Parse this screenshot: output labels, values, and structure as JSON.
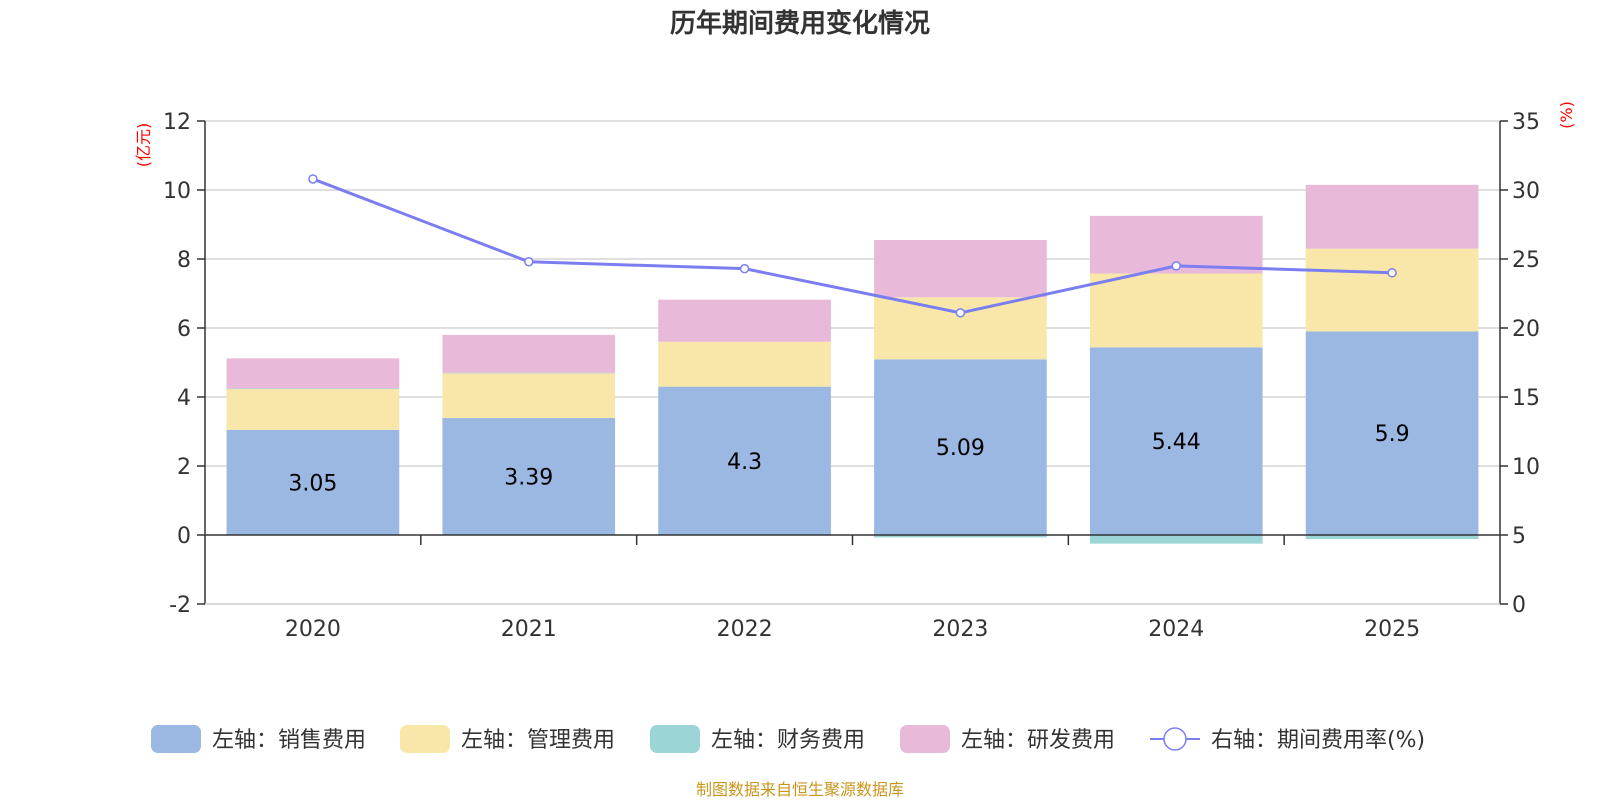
{
  "chart_data": {
    "type": "bar",
    "title": "历年期间费用变化情况",
    "categories": [
      "2020",
      "2021",
      "2022",
      "2023",
      "2024",
      "2025"
    ],
    "y_left": {
      "unit": "(亿元)",
      "range": [
        -2,
        12
      ],
      "ticks": [
        -2,
        0,
        2,
        4,
        6,
        8,
        10,
        12
      ]
    },
    "y_right": {
      "unit": "(%)",
      "range": [
        0,
        35
      ],
      "ticks": [
        0,
        5,
        10,
        15,
        20,
        25,
        30,
        35
      ]
    },
    "grid": true,
    "stacked": true,
    "series": [
      {
        "name": "左轴：销售费用",
        "axis": "left",
        "color": "#9bb8e3",
        "values": [
          3.05,
          3.39,
          4.3,
          5.09,
          5.44,
          5.9
        ],
        "labels": [
          "3.05",
          "3.39",
          "4.3",
          "5.09",
          "5.44",
          "5.9"
        ]
      },
      {
        "name": "左轴：管理费用",
        "axis": "left",
        "color": "#f8e7a8",
        "values": [
          1.18,
          1.3,
          1.3,
          1.8,
          2.14,
          2.4
        ]
      },
      {
        "name": "左轴：财务费用",
        "axis": "left",
        "color": "#9bd5d5",
        "values": [
          0.02,
          0.01,
          -0.01,
          -0.07,
          -0.25,
          -0.12
        ]
      },
      {
        "name": "左轴：研发费用",
        "axis": "left",
        "color": "#e8b9d9",
        "values": [
          0.87,
          1.1,
          1.22,
          1.66,
          1.67,
          1.85
        ]
      },
      {
        "name": "右轴：期间费用率(%)",
        "axis": "right",
        "type": "line",
        "color": "#7b7ef0",
        "values": [
          30.8,
          24.8,
          24.3,
          21.1,
          24.5,
          24.0
        ]
      }
    ],
    "legend_position": "bottom",
    "source": "制图数据来自恒生聚源数据库"
  }
}
